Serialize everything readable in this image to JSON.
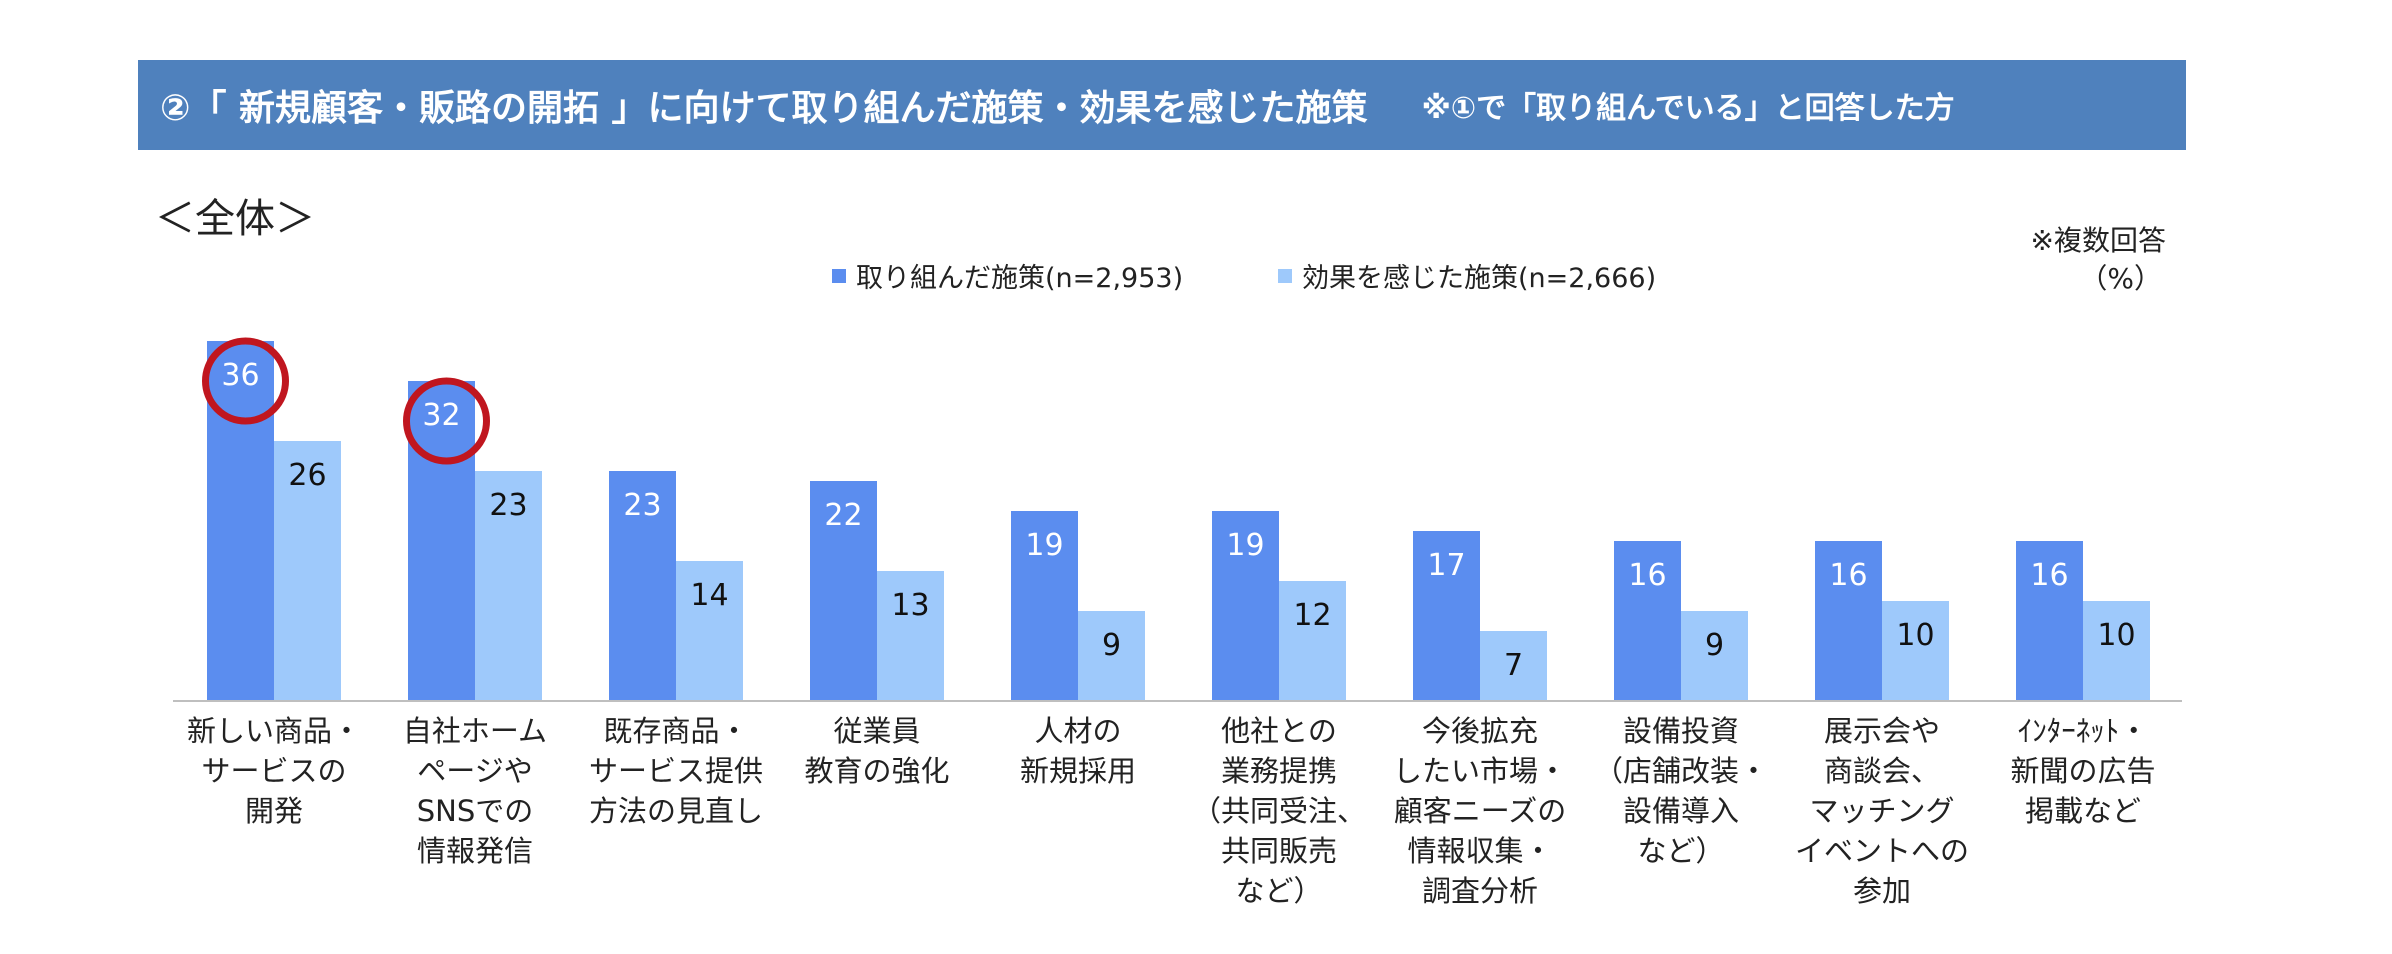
{
  "header": {
    "title": "②「 新規顧客・販路の開拓 」に向けて取り組んだ施策・効果を感じた施策",
    "note": "※①で「取り組んでいる」と回答した方"
  },
  "subtitle": "＜全体＞",
  "multiple_answer_note": "※複数回答",
  "unit_note": "（%）",
  "colors": {
    "header_bg": "#4f81bd",
    "series_1": "#5b8def",
    "series_2": "#9ec9fb",
    "highlight_circle": "#c0161f"
  },
  "chart_data": {
    "type": "bar",
    "categories": [
      "新しい商品・\nサービスの\n開発",
      "自社ホーム\nページや\nSNSでの\n情報発信",
      "既存商品・\nサービス提供\n方法の見直し",
      "従業員\n教育の強化",
      "人材の\n新規採用",
      "他社との\n業務提携\n（共同受注、\n共同販売\nなど）",
      "今後拡充\nしたい市場・\n顧客ニーズの\n情報収集・\n調査分析",
      "設備投資\n（店舗改装・\n設備導入\nなど）",
      "展示会や\n商談会、\nマッチング\nイベントへの\n参加",
      "ｲﾝﾀｰﾈｯﾄ・\n新聞の広告\n掲載など"
    ],
    "series": [
      {
        "name": "取り組んだ施策(n=2,953)",
        "values": [
          36,
          32,
          23,
          22,
          19,
          19,
          17,
          16,
          16,
          16
        ]
      },
      {
        "name": "効果を感じた施策(n=2,666)",
        "values": [
          26,
          23,
          14,
          13,
          9,
          12,
          7,
          9,
          10,
          10
        ]
      }
    ],
    "highlighted": [
      0,
      1
    ],
    "ylim": [
      0,
      40
    ],
    "legend_position": "top",
    "grid": false
  }
}
